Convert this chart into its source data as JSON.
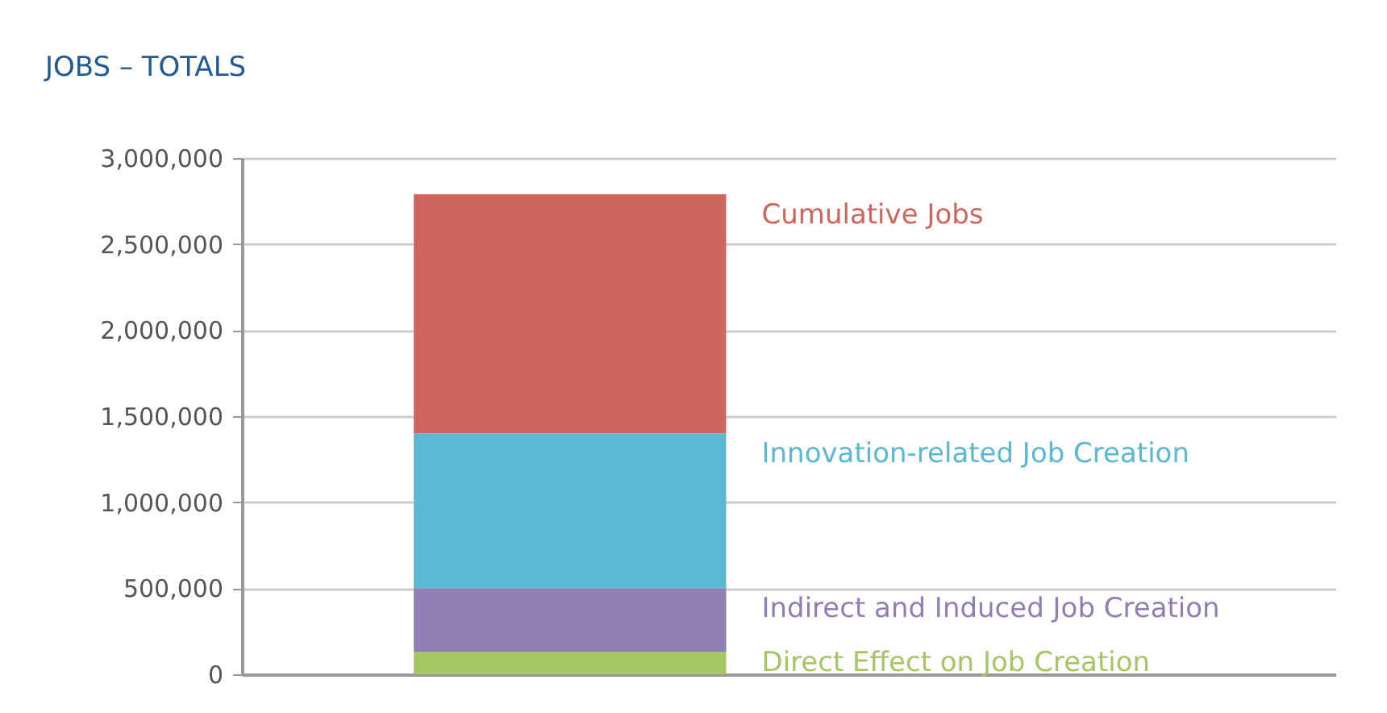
{
  "chart_data": {
    "type": "bar",
    "title": "JOBS – TOTALS",
    "categories": [
      null
    ],
    "stacked": true,
    "series": [
      {
        "name": "Direct Effect on Job Creation",
        "color": "#a5c663",
        "values": [
          130000
        ]
      },
      {
        "name": "Indirect and Induced Job Creation",
        "color": "#927db5",
        "values": [
          370000
        ]
      },
      {
        "name": "Innovation-related Job Creation",
        "color": "#5bb8d2",
        "values": [
          900000
        ]
      },
      {
        "name": "Cumulative Jobs",
        "color": "#d0655d",
        "values": [
          1390000
        ]
      }
    ],
    "ylim": [
      0,
      3000000
    ],
    "yticks": [
      0,
      {
        "value": 500000,
        "label": "500,000"
      },
      {
        "value": 1000000,
        "label": "1,000,000"
      },
      {
        "value": 1500000,
        "label": "1,500,000"
      },
      {
        "value": 2000000,
        "label": "2,000,000"
      },
      {
        "value": 2500000,
        "label": "2,500,000"
      },
      {
        "value": 3000000,
        "label": "3,000,000"
      }
    ],
    "grid": "y",
    "tick_labels": "y",
    "legend": false
  }
}
